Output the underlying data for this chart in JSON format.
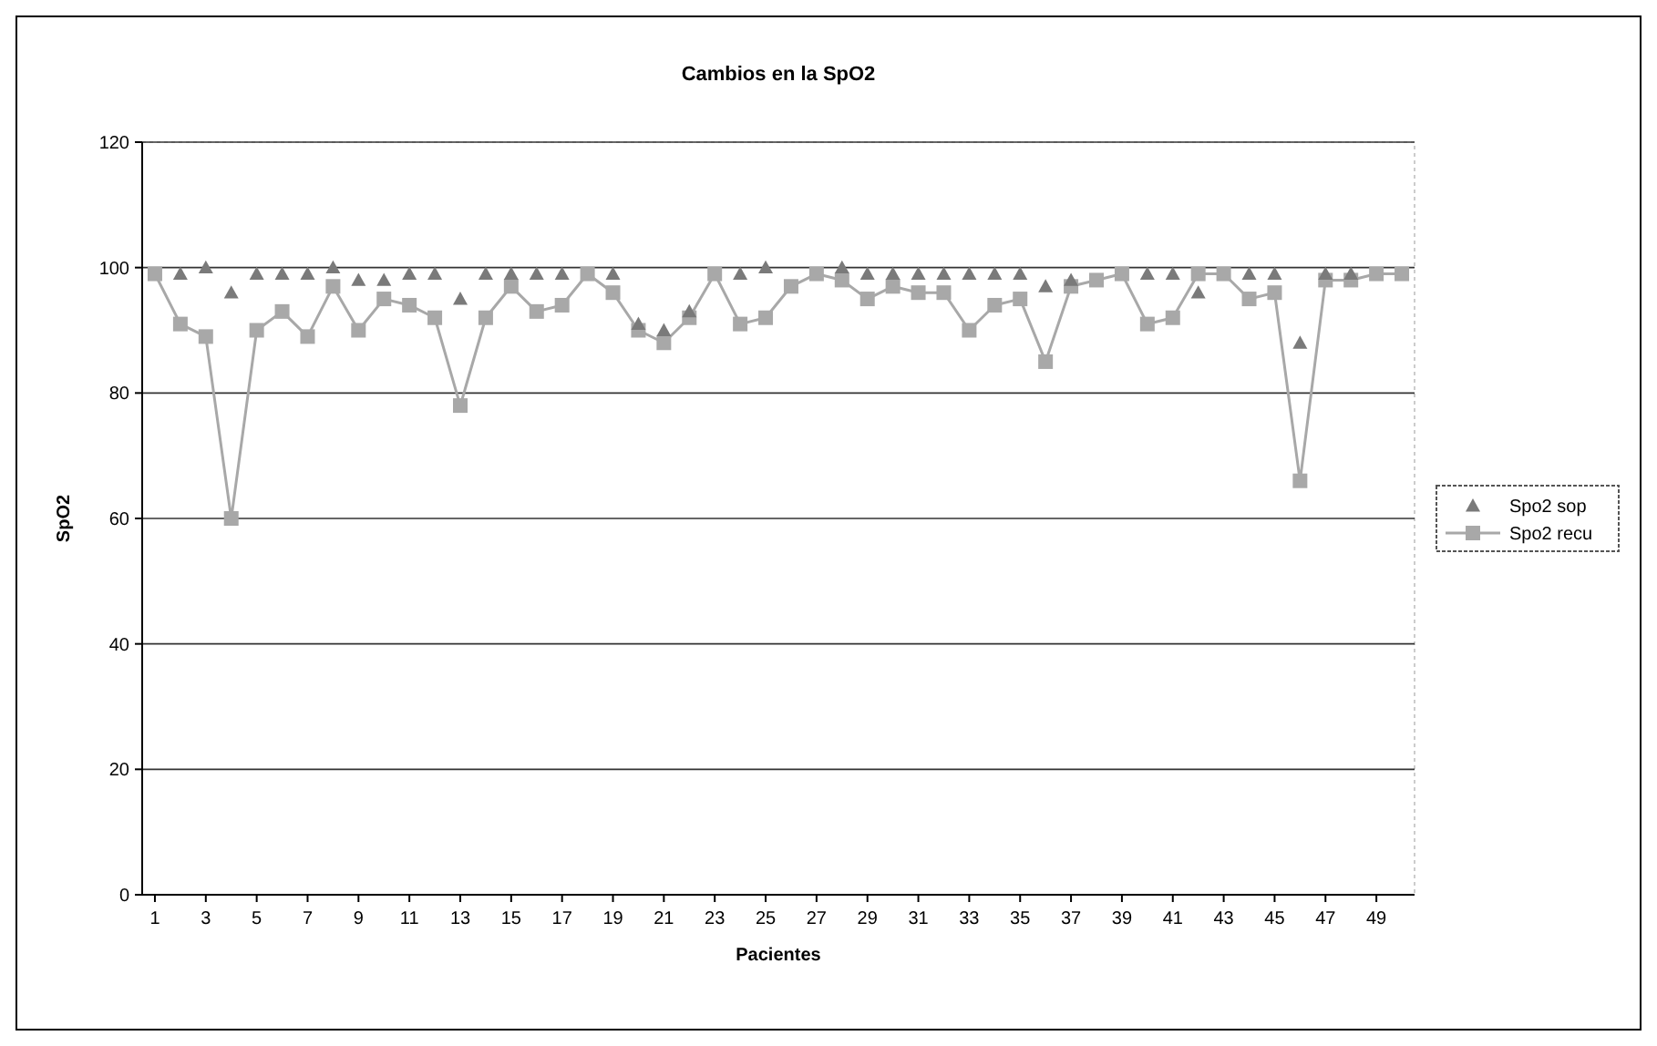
{
  "chart_data": {
    "type": "line",
    "title": "Cambios en la SpO2",
    "xlabel": "Pacientes",
    "ylabel": "SpO2",
    "x": [
      1,
      2,
      3,
      4,
      5,
      6,
      7,
      8,
      9,
      10,
      11,
      12,
      13,
      14,
      15,
      16,
      17,
      18,
      19,
      20,
      21,
      22,
      23,
      24,
      25,
      26,
      27,
      28,
      29,
      30,
      31,
      32,
      33,
      34,
      35,
      36,
      37,
      38,
      39,
      40,
      41,
      42,
      43,
      44,
      45,
      46,
      47,
      48,
      49,
      50
    ],
    "xlim": [
      0.5,
      50.5
    ],
    "xticks": [
      1,
      3,
      5,
      7,
      9,
      11,
      13,
      15,
      17,
      19,
      21,
      23,
      25,
      27,
      29,
      31,
      33,
      35,
      37,
      39,
      41,
      43,
      45,
      47,
      49
    ],
    "series": [
      {
        "name": "Spo2 sop",
        "type": "scatter",
        "marker": "triangle",
        "color": "#7a7a7a",
        "values": [
          null,
          99,
          100,
          96,
          99,
          99,
          99,
          100,
          98,
          98,
          99,
          99,
          95,
          99,
          99,
          99,
          99,
          null,
          99,
          91,
          90,
          93,
          null,
          99,
          100,
          null,
          null,
          100,
          99,
          99,
          99,
          99,
          99,
          99,
          99,
          97,
          98,
          null,
          null,
          99,
          99,
          96,
          null,
          99,
          99,
          88,
          99,
          99,
          null,
          null
        ]
      },
      {
        "name": "Spo2 recu",
        "type": "line",
        "marker": "square",
        "color": "#a8a8a8",
        "values": [
          99,
          91,
          89,
          60,
          90,
          93,
          89,
          97,
          90,
          95,
          94,
          92,
          78,
          92,
          97,
          93,
          94,
          99,
          96,
          90,
          88,
          92,
          99,
          91,
          92,
          97,
          99,
          98,
          95,
          97,
          96,
          96,
          90,
          94,
          95,
          85,
          97,
          98,
          99,
          91,
          92,
          99,
          99,
          95,
          96,
          66,
          98,
          98,
          99,
          99
        ]
      }
    ],
    "ylim": [
      0,
      120
    ],
    "yticks": [
      0,
      20,
      40,
      60,
      80,
      100,
      120
    ],
    "grid": "y",
    "legend": "right"
  }
}
